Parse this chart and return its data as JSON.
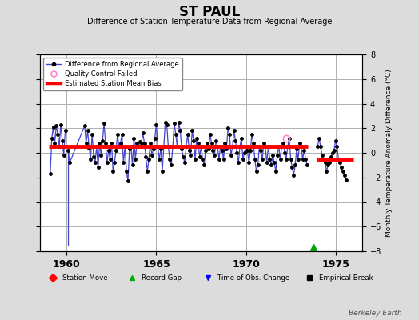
{
  "title": "ST PAUL",
  "subtitle": "Difference of Station Temperature Data from Regional Average",
  "ylabel": "Monthly Temperature Anomaly Difference (°C)",
  "xlim": [
    1958.5,
    1976.5
  ],
  "ylim": [
    -8,
    8
  ],
  "yticks": [
    -8,
    -6,
    -4,
    -2,
    0,
    2,
    4,
    6,
    8
  ],
  "xticks": [
    1960,
    1965,
    1970,
    1975
  ],
  "background_color": "#dcdcdc",
  "plot_bg_color": "#ffffff",
  "grid_color": "#b0b0b0",
  "line_color": "#4444cc",
  "marker_color": "#000000",
  "bias_color": "#ff0000",
  "bias_value1": 0.55,
  "bias_value2": -0.55,
  "bias_start1": 1959.0,
  "bias_end1": 1973.45,
  "bias_start2": 1973.95,
  "bias_end2": 1976.0,
  "gap_marker_x": 1973.75,
  "gap_marker_y": -7.7,
  "qc_fail_x": 1972.25,
  "qc_fail_y": 1.2,
  "data_x": [
    1959.083,
    1959.167,
    1959.25,
    1959.333,
    1959.417,
    1959.5,
    1959.583,
    1959.667,
    1959.75,
    1959.833,
    1959.917,
    1960.083,
    1960.167,
    1961.0,
    1961.083,
    1961.167,
    1961.25,
    1961.333,
    1961.417,
    1961.5,
    1961.583,
    1961.667,
    1961.75,
    1961.833,
    1961.917,
    1962.0,
    1962.083,
    1962.167,
    1962.25,
    1962.333,
    1962.417,
    1962.5,
    1962.583,
    1962.667,
    1962.75,
    1962.833,
    1962.917,
    1963.0,
    1963.083,
    1963.167,
    1963.25,
    1963.333,
    1963.417,
    1963.5,
    1963.583,
    1963.667,
    1963.75,
    1963.833,
    1963.917,
    1964.0,
    1964.083,
    1964.167,
    1964.25,
    1964.333,
    1964.417,
    1964.5,
    1964.583,
    1964.667,
    1964.75,
    1964.833,
    1964.917,
    1965.0,
    1965.083,
    1965.167,
    1965.25,
    1965.333,
    1965.417,
    1965.5,
    1965.583,
    1965.667,
    1965.75,
    1965.833,
    1965.917,
    1966.0,
    1966.083,
    1966.167,
    1966.25,
    1966.333,
    1966.417,
    1966.5,
    1966.583,
    1966.667,
    1966.75,
    1966.833,
    1966.917,
    1967.0,
    1967.083,
    1967.167,
    1967.25,
    1967.333,
    1967.417,
    1967.5,
    1967.583,
    1967.667,
    1967.75,
    1967.833,
    1967.917,
    1968.0,
    1968.083,
    1968.167,
    1968.25,
    1968.333,
    1968.417,
    1968.5,
    1968.583,
    1968.667,
    1968.75,
    1968.833,
    1968.917,
    1969.0,
    1969.083,
    1969.167,
    1969.25,
    1969.333,
    1969.417,
    1969.5,
    1969.583,
    1969.667,
    1969.75,
    1969.833,
    1969.917,
    1970.0,
    1970.083,
    1970.167,
    1970.25,
    1970.333,
    1970.417,
    1970.5,
    1970.583,
    1970.667,
    1970.75,
    1970.833,
    1970.917,
    1971.0,
    1971.083,
    1971.167,
    1971.25,
    1971.333,
    1971.417,
    1971.5,
    1971.583,
    1971.667,
    1971.75,
    1971.833,
    1971.917,
    1972.0,
    1972.083,
    1972.167,
    1972.25,
    1972.333,
    1972.417,
    1972.5,
    1972.583,
    1972.667,
    1972.75,
    1972.833,
    1972.917,
    1973.0,
    1973.083,
    1973.167,
    1973.25,
    1973.333,
    1973.417,
    1974.0,
    1974.083,
    1974.167,
    1974.25,
    1974.333,
    1974.417,
    1974.5,
    1974.583,
    1974.667,
    1974.75,
    1974.833,
    1974.917,
    1975.0,
    1975.083,
    1975.167,
    1975.25,
    1975.333,
    1975.417,
    1975.5,
    1975.583
  ],
  "data_y": [
    -1.7,
    1.2,
    2.1,
    0.8,
    2.2,
    1.5,
    0.5,
    2.3,
    1.0,
    -0.2,
    1.8,
    0.2,
    -0.8,
    2.2,
    0.8,
    1.8,
    0.4,
    -0.5,
    1.5,
    -0.3,
    -0.8,
    0.5,
    -1.2,
    0.8,
    -0.2,
    1.0,
    2.4,
    0.8,
    -0.8,
    0.2,
    -0.5,
    0.8,
    -1.5,
    -0.8,
    0.2,
    1.5,
    0.5,
    0.8,
    1.5,
    -0.8,
    0.5,
    -1.5,
    -2.3,
    0.3,
    0.5,
    -1.0,
    1.2,
    -0.5,
    0.8,
    0.5,
    0.9,
    0.8,
    1.6,
    0.8,
    -0.3,
    -1.5,
    -0.5,
    0.8,
    -0.2,
    0.3,
    1.2,
    2.3,
    0.5,
    -0.5,
    0.3,
    -1.5,
    0.5,
    2.5,
    2.3,
    0.5,
    -0.5,
    -1.0,
    0.5,
    2.4,
    1.5,
    0.5,
    2.5,
    1.8,
    0.3,
    -0.3,
    -0.8,
    0.5,
    1.5,
    0.2,
    -0.2,
    1.8,
    1.0,
    -0.5,
    1.2,
    0.8,
    -0.3,
    0.5,
    -0.5,
    -1.0,
    0.2,
    0.8,
    0.3,
    1.5,
    0.8,
    0.2,
    -0.2,
    1.0,
    0.5,
    -0.5,
    0.5,
    0.2,
    -0.5,
    0.8,
    0.3,
    2.0,
    1.5,
    -0.2,
    0.5,
    1.8,
    1.0,
    0.0,
    -0.8,
    0.5,
    1.2,
    -0.5,
    0.0,
    0.5,
    0.2,
    -0.8,
    0.2,
    1.5,
    0.8,
    -0.5,
    -1.5,
    -1.0,
    0.5,
    0.2,
    -0.5,
    0.8,
    0.5,
    -0.8,
    0.5,
    -0.5,
    -1.0,
    -0.2,
    -0.8,
    -1.5,
    -0.2,
    0.5,
    -0.5,
    0.5,
    0.8,
    0.0,
    -0.5,
    0.5,
    1.2,
    -0.5,
    -1.2,
    -1.8,
    -1.0,
    0.3,
    -0.5,
    0.8,
    0.5,
    -0.5,
    0.2,
    -0.5,
    -1.0,
    0.5,
    1.2,
    0.5,
    -0.2,
    -0.5,
    -0.8,
    -1.5,
    -1.0,
    -0.8,
    -0.3,
    0.0,
    0.2,
    1.0,
    0.5,
    -0.5,
    -0.8,
    -1.2,
    -1.5,
    -1.8,
    -2.2
  ],
  "drop_line_x": 1960.083,
  "drop_line_y_top": 0.2,
  "drop_line_y_bot": -7.5,
  "watermark": "Berkeley Earth"
}
